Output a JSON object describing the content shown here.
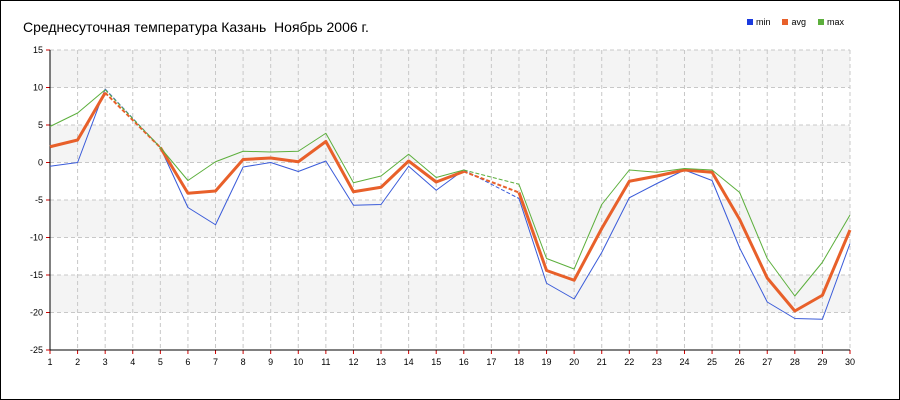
{
  "chart_data": {
    "type": "line",
    "title": "Среднесуточная температура Казань  Ноябрь 2006 г.",
    "xlabel": "",
    "ylabel": "",
    "x": [
      1,
      2,
      3,
      4,
      5,
      6,
      7,
      8,
      9,
      10,
      11,
      12,
      13,
      14,
      15,
      16,
      17,
      18,
      19,
      20,
      21,
      22,
      23,
      24,
      25,
      26,
      27,
      28,
      29,
      30
    ],
    "xlim": [
      1,
      30
    ],
    "ylim": [
      -25,
      15
    ],
    "yticks": [
      15,
      10,
      5,
      0,
      -5,
      -10,
      -15,
      -20,
      -25
    ],
    "grid": true,
    "legend_position": "top-right",
    "gaps": [
      [
        3,
        5
      ],
      [
        16,
        18
      ]
    ],
    "series": [
      {
        "name": "min",
        "color": "#3a5bd9",
        "values": [
          -0.5,
          0.0,
          9.8,
          null,
          2.0,
          -6.0,
          -8.3,
          -0.6,
          0.0,
          -1.2,
          0.2,
          -5.7,
          -5.6,
          -0.5,
          -3.7,
          -1.0,
          null,
          -4.8,
          -16.1,
          -18.2,
          -12.0,
          -4.7,
          -2.8,
          -1.0,
          -2.4,
          -11.4,
          -18.6,
          -20.8,
          -20.9,
          -10.8
        ]
      },
      {
        "name": "avg",
        "color": "#e8602a",
        "values": [
          2.1,
          3.0,
          9.3,
          null,
          2.0,
          -4.1,
          -3.8,
          0.4,
          0.6,
          0.1,
          2.8,
          -3.9,
          -3.3,
          0.2,
          -2.6,
          -1.2,
          null,
          -4.0,
          -14.4,
          -15.7,
          -8.8,
          -2.5,
          -1.8,
          -1.0,
          -1.3,
          -7.6,
          -15.4,
          -19.8,
          -17.7,
          -9.0
        ]
      },
      {
        "name": "max",
        "color": "#5caf3c",
        "values": [
          4.8,
          6.6,
          9.7,
          null,
          2.0,
          -2.4,
          0.1,
          1.5,
          1.4,
          1.5,
          3.9,
          -2.7,
          -1.8,
          1.1,
          -2.0,
          -1.0,
          null,
          -2.9,
          -12.8,
          -14.2,
          -5.6,
          -1.0,
          -1.3,
          -0.8,
          -1.0,
          -4.0,
          -12.8,
          -17.8,
          -13.3,
          -7.0
        ]
      }
    ]
  }
}
